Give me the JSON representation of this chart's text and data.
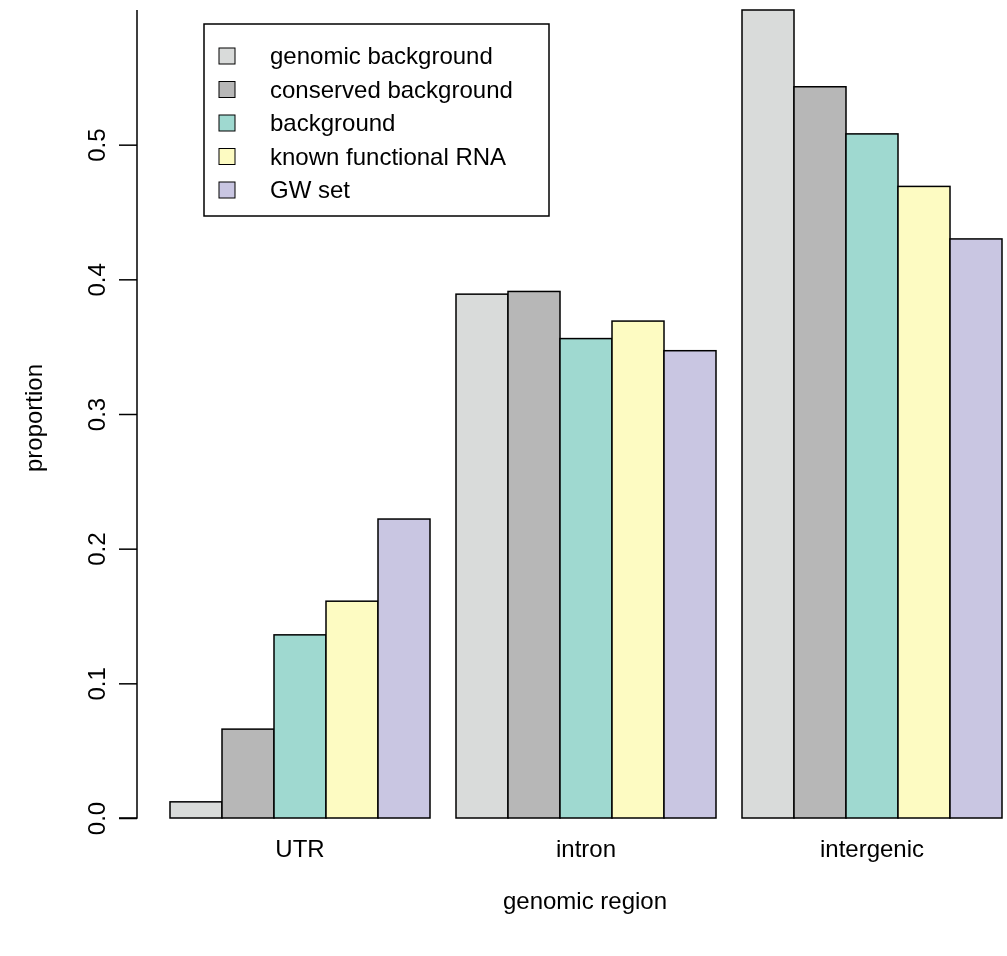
{
  "chart_data": {
    "type": "bar",
    "xlabel": "genomic region",
    "ylabel": "proportion",
    "categories": [
      "UTR",
      "intron",
      "intergenic"
    ],
    "series": [
      {
        "name": "genomic background",
        "color": "#d9dbda",
        "values": [
          0.012,
          0.389,
          0.6
        ]
      },
      {
        "name": "conserved background",
        "color": "#b7b7b7",
        "values": [
          0.066,
          0.391,
          0.543
        ]
      },
      {
        "name": "background",
        "color": "#9fd9d0",
        "values": [
          0.136,
          0.356,
          0.508
        ]
      },
      {
        "name": "known functional RNA",
        "color": "#fdfbc2",
        "values": [
          0.161,
          0.369,
          0.469
        ]
      },
      {
        "name": "GW set",
        "color": "#c9c6e2",
        "values": [
          0.222,
          0.347,
          0.43
        ]
      }
    ],
    "ylim": [
      0,
      0.6
    ],
    "yticks": [
      {
        "value": 0,
        "label": "0.0"
      },
      {
        "value": 0.1,
        "label": "0.1"
      },
      {
        "value": 0.2,
        "label": "0.2"
      },
      {
        "value": 0.3,
        "label": "0.3"
      },
      {
        "value": 0.4,
        "label": "0.4"
      },
      {
        "value": 0.5,
        "label": "0.5"
      }
    ],
    "grid": false,
    "legend": "top left"
  }
}
